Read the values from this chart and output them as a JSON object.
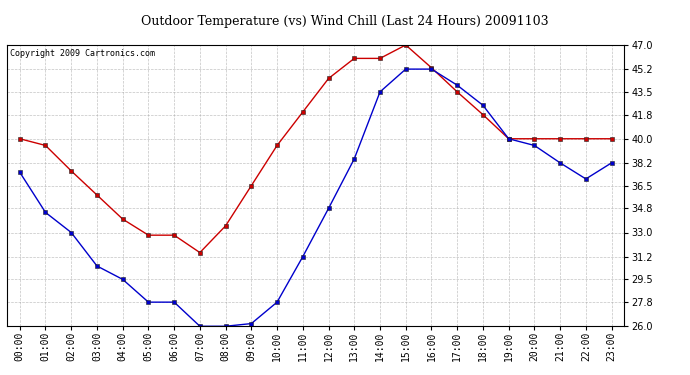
{
  "title": "Outdoor Temperature (vs) Wind Chill (Last 24 Hours) 20091103",
  "copyright": "Copyright 2009 Cartronics.com",
  "hours": [
    "00:00",
    "01:00",
    "02:00",
    "03:00",
    "04:00",
    "05:00",
    "06:00",
    "07:00",
    "08:00",
    "09:00",
    "10:00",
    "11:00",
    "12:00",
    "13:00",
    "14:00",
    "15:00",
    "16:00",
    "17:00",
    "18:00",
    "19:00",
    "20:00",
    "21:00",
    "22:00",
    "23:00"
  ],
  "temp": [
    40.0,
    39.5,
    37.6,
    35.8,
    34.0,
    32.8,
    32.8,
    31.5,
    33.5,
    36.5,
    39.5,
    42.0,
    44.5,
    46.0,
    46.0,
    47.0,
    45.3,
    43.5,
    41.8,
    40.0,
    40.0,
    40.0,
    40.0,
    40.0
  ],
  "wind_chill": [
    37.5,
    34.5,
    33.0,
    30.5,
    29.5,
    27.8,
    27.8,
    26.0,
    26.0,
    26.2,
    27.8,
    31.2,
    34.8,
    38.5,
    43.5,
    45.2,
    45.2,
    44.0,
    42.5,
    40.0,
    39.5,
    38.2,
    37.0,
    38.2
  ],
  "temp_color": "#cc0000",
  "wind_chill_color": "#0000cc",
  "bg_color": "#ffffff",
  "plot_bg_color": "#ffffff",
  "grid_color": "#aaaaaa",
  "ylim_min": 26.0,
  "ylim_max": 47.0,
  "yticks": [
    26.0,
    27.8,
    29.5,
    31.2,
    33.0,
    34.8,
    36.5,
    38.2,
    40.0,
    41.8,
    43.5,
    45.2,
    47.0
  ],
  "title_fontsize": 9,
  "tick_fontsize": 7,
  "copyright_fontsize": 6
}
